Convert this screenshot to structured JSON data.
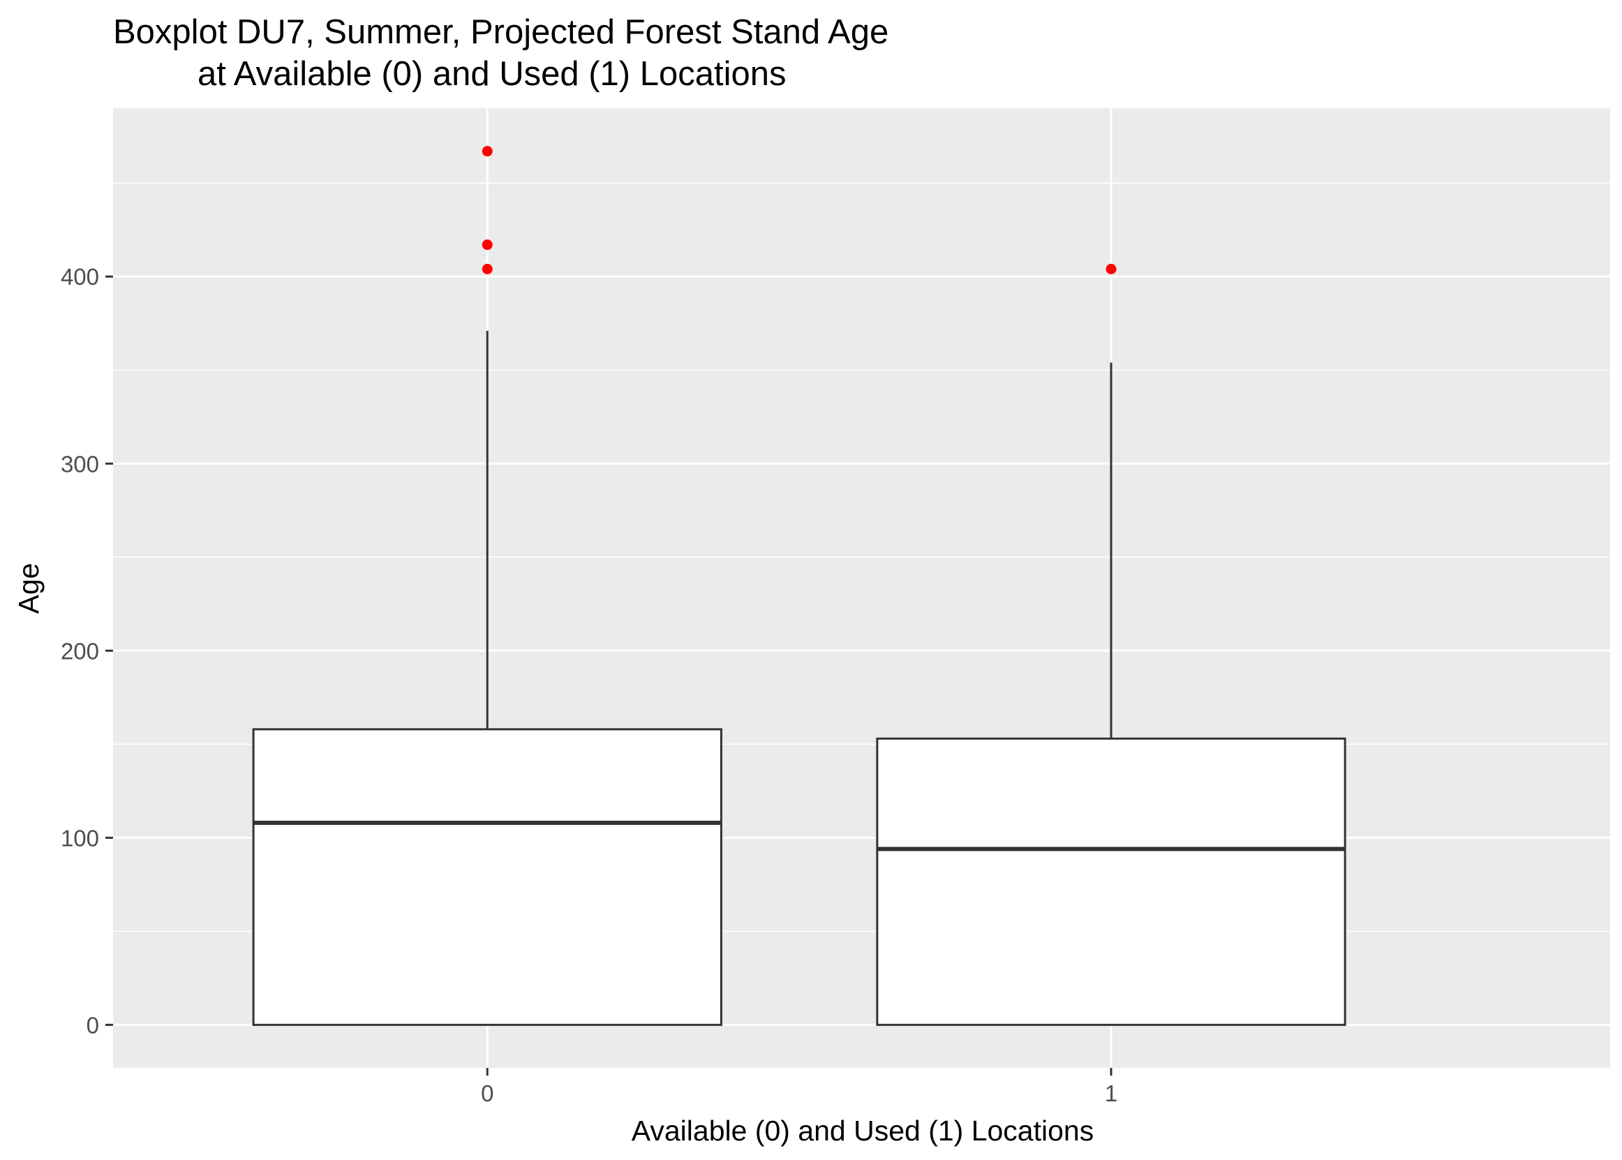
{
  "chart_data": {
    "type": "boxplot",
    "title": [
      "Boxplot DU7, Summer, Projected Forest Stand Age",
      "at Available (0) and Used (1) Locations"
    ],
    "xlabel": "Available (0) and Used (1) Locations",
    "ylabel": "Age",
    "categories": [
      "0",
      "1"
    ],
    "yticks": [
      0,
      100,
      200,
      300,
      400
    ],
    "ylim": [
      -23,
      490
    ],
    "grid": true,
    "boxes": [
      {
        "category": "0",
        "whisker_low": 0,
        "q1": 0,
        "median": 108,
        "q3": 158,
        "whisker_high": 371,
        "outliers": [
          404,
          417,
          467
        ]
      },
      {
        "category": "1",
        "whisker_low": 0,
        "q1": 0,
        "median": 94,
        "q3": 153,
        "whisker_high": 354,
        "outliers": [
          404
        ]
      }
    ],
    "colors": {
      "panel_background": "#ebebeb",
      "grid": "#ffffff",
      "box_fill": "#ffffff",
      "box_line": "#333333",
      "outlier": "#ff0000"
    }
  }
}
